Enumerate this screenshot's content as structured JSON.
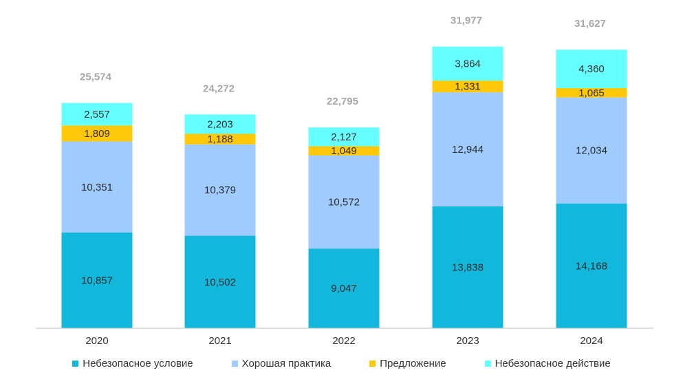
{
  "chart_data": {
    "type": "bar",
    "stacked": true,
    "categories": [
      "2020",
      "2021",
      "2022",
      "2023",
      "2024"
    ],
    "series": [
      {
        "name": "Небезопасное условие",
        "color": "#12b8dc",
        "values": [
          10857,
          10502,
          9047,
          13838,
          14168
        ],
        "labels": [
          "10,857",
          "10,502",
          "9,047",
          "13,838",
          "14,168"
        ]
      },
      {
        "name": "Хорошая практика",
        "color": "#9fcbff",
        "values": [
          10351,
          10379,
          10572,
          12944,
          12034
        ],
        "labels": [
          "10,351",
          "10,379",
          "10,572",
          "12,944",
          "12,034"
        ]
      },
      {
        "name": "Предложение",
        "color": "#ffc90a",
        "values": [
          1809,
          1188,
          1049,
          1331,
          1065
        ],
        "labels": [
          "1,809",
          "1,188",
          "1,049",
          "1,331",
          "1,065"
        ]
      },
      {
        "name": "Небезопасное действие",
        "color": "#66ffff",
        "values": [
          2557,
          2203,
          2127,
          3864,
          4360
        ],
        "labels": [
          "2,557",
          "2,203",
          "2,127",
          "3,864",
          "4,360"
        ]
      }
    ],
    "totals": [
      "25,574",
      "24,272",
      "22,795",
      "31,977",
      "31,627"
    ],
    "ylim": [
      0,
      35000
    ],
    "grid": false,
    "legend_position": "bottom"
  }
}
